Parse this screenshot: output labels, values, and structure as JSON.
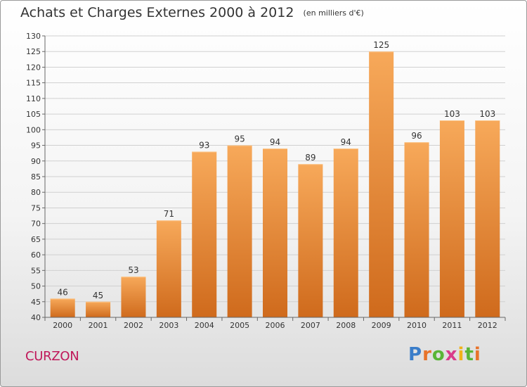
{
  "header": {
    "title": "Achats et Charges Externes 2000 à 2012",
    "unit_note": "(en milliers d'€)"
  },
  "footer": {
    "place_name": "CURZON",
    "logo_text": "Proxiti"
  },
  "colors": {
    "bar_top": "#f7a95a",
    "bar_bottom": "#cf6a1c",
    "grid": "#d0d0d0",
    "title_text": "#333333",
    "place_text": "#c0185a"
  },
  "chart_data": {
    "type": "bar",
    "title": "Achats et Charges Externes 2000 à 2012",
    "subtitle": "(en milliers d'€)",
    "xlabel": "",
    "ylabel": "",
    "categories": [
      "2000",
      "2001",
      "2002",
      "2003",
      "2004",
      "2005",
      "2006",
      "2007",
      "2008",
      "2009",
      "2010",
      "2011",
      "2012"
    ],
    "values": [
      46,
      45,
      53,
      71,
      93,
      95,
      94,
      89,
      94,
      125,
      96,
      103,
      103
    ],
    "ylim": [
      40,
      130
    ],
    "yticks": [
      40,
      45,
      50,
      55,
      60,
      65,
      70,
      75,
      80,
      85,
      90,
      95,
      100,
      105,
      110,
      115,
      120,
      125,
      130
    ],
    "grid": true,
    "data_labels": true,
    "legend": "none"
  }
}
